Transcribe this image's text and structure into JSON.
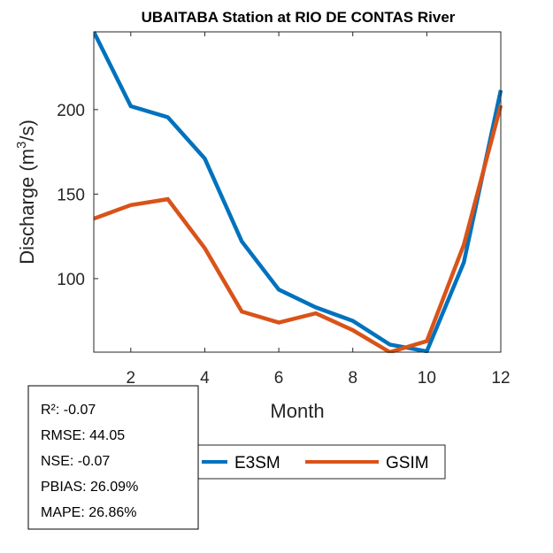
{
  "chart_data": {
    "type": "line",
    "title": "UBAITABA  Station at  RIO DE CONTAS  River",
    "xlabel": "Month",
    "ylabel": "Discharge (m",
    "ylabel_sup": "3",
    "ylabel_suffix": "/s)",
    "xlim": [
      1,
      12
    ],
    "ylim": [
      56.5,
      246
    ],
    "xticks": [
      2,
      4,
      6,
      8,
      10,
      12
    ],
    "yticks": [
      100,
      150,
      200
    ],
    "grid": false,
    "x": [
      1,
      2,
      3,
      4,
      5,
      6,
      7,
      8,
      9,
      10,
      11,
      12
    ],
    "series": [
      {
        "name": "E3SM",
        "color": "#0072BD",
        "values": [
          246,
          202,
          195.5,
          171,
          122,
          93.5,
          83,
          75,
          61,
          57,
          109.5,
          211.5
        ]
      },
      {
        "name": "GSIM",
        "color": "#D95319",
        "values": [
          135.5,
          143.5,
          147,
          118,
          80.5,
          74,
          79.5,
          69.5,
          56.5,
          63,
          120,
          202.5
        ]
      }
    ],
    "legend": {
      "placement": "bottom-center",
      "entries": [
        "E3SM",
        "GSIM"
      ]
    },
    "stats": [
      {
        "label": "R²: -0.07"
      },
      {
        "label": "RMSE: 44.05"
      },
      {
        "label": "NSE: -0.07"
      },
      {
        "label": "PBIAS: 26.09%"
      },
      {
        "label": "MAPE: 26.86%"
      }
    ]
  }
}
